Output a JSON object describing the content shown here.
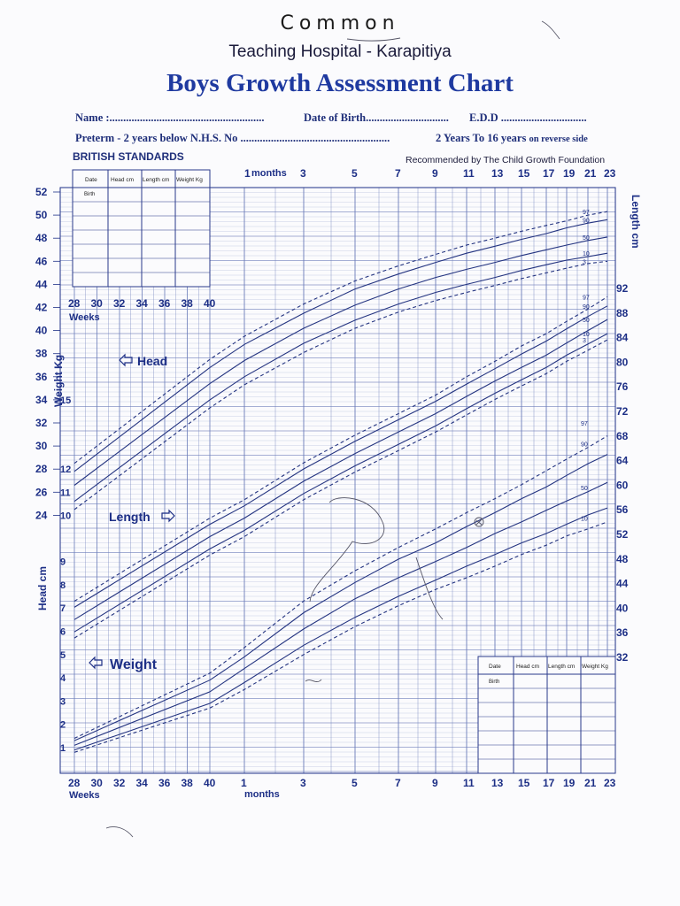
{
  "header": {
    "handwritten": "Common",
    "hospital": "Teaching Hospital - Karapitiya",
    "title": "Boys Growth Assessment Chart"
  },
  "form": {
    "name": "Name :........................................................",
    "dob": "Date of Birth..............................",
    "edd": "E.D.D ...............................",
    "preterm": "Preterm - 2 years below N.H.S.  No ......................................................",
    "reverse": "2 Years To 16 years",
    "reverse_small": "on reverse side"
  },
  "standards": "BRITISH STANDARDS",
  "recommended": "Recommended by The Child Growth Foundation",
  "labels": {
    "head": "Head",
    "length": "Length",
    "weight": "Weight",
    "weight_axis": "Weight Kg",
    "head_axis": "Head cm",
    "length_axis": "Length cm",
    "weeks": "Weeks",
    "months": "months",
    "months_top": "months"
  },
  "table_headers": [
    "Date",
    "Head cm",
    "Length cm",
    "Weight Kg"
  ],
  "table_first_row": "Birth",
  "colors": {
    "ink": "#1d2f86",
    "grid": "#6a7bb8",
    "pencil": "#555566"
  },
  "chart_data": [
    {
      "type": "line",
      "name": "head",
      "title": "",
      "x_weeks_ticks": [
        "28",
        "30",
        "32",
        "34",
        "36",
        "38",
        "40"
      ],
      "x_months_ticks": [
        "1",
        "3",
        "5",
        "7",
        "9",
        "11",
        "13",
        "15",
        "17",
        "19",
        "21",
        "23"
      ],
      "y_left_head_ticks": [
        "24",
        "26",
        "28",
        "30",
        "32",
        "34",
        "36",
        "38",
        "40",
        "42",
        "44",
        "46",
        "48",
        "50",
        "52"
      ],
      "centiles": [
        "97",
        "90",
        "50",
        "10",
        "3"
      ],
      "series": [
        {
          "name": "97",
          "x": [
            28,
            40,
            1,
            3,
            5,
            7,
            9,
            11,
            13,
            15,
            17,
            19,
            21,
            23
          ],
          "values": [
            28.5,
            37.5,
            39.5,
            42.3,
            44.3,
            45.6,
            46.6,
            47.4,
            48.0,
            48.6,
            49.1,
            49.5,
            50.0,
            50.3
          ]
        },
        {
          "name": "90",
          "x": [
            28,
            40,
            1,
            3,
            5,
            7,
            9,
            11,
            13,
            15,
            17,
            19,
            21,
            23
          ],
          "values": [
            27.8,
            36.8,
            38.8,
            41.5,
            43.6,
            44.9,
            45.9,
            46.7,
            47.3,
            47.9,
            48.4,
            48.9,
            49.3,
            49.6
          ]
        },
        {
          "name": "50",
          "x": [
            28,
            40,
            1,
            3,
            5,
            7,
            9,
            11,
            13,
            15,
            17,
            19,
            21,
            23
          ],
          "values": [
            26.6,
            35.4,
            37.4,
            40.2,
            42.2,
            43.6,
            44.6,
            45.3,
            45.9,
            46.5,
            47.0,
            47.4,
            47.8,
            48.1
          ]
        },
        {
          "name": "10",
          "x": [
            28,
            40,
            1,
            3,
            5,
            7,
            9,
            11,
            13,
            15,
            17,
            19,
            21,
            23
          ],
          "values": [
            25.2,
            34.0,
            36.0,
            38.9,
            40.9,
            42.3,
            43.3,
            44.0,
            44.6,
            45.2,
            45.7,
            46.1,
            46.4,
            46.7
          ]
        },
        {
          "name": "3",
          "x": [
            28,
            40,
            1,
            3,
            5,
            7,
            9,
            11,
            13,
            15,
            17,
            19,
            21,
            23
          ],
          "values": [
            24.5,
            33.3,
            35.3,
            38.1,
            40.2,
            41.6,
            42.6,
            43.3,
            43.9,
            44.5,
            45.0,
            45.4,
            45.8,
            46.0
          ]
        }
      ]
    },
    {
      "type": "line",
      "name": "length",
      "y_right_ticks": [
        "32",
        "36",
        "40",
        "44",
        "48",
        "52",
        "56",
        "60",
        "64",
        "68",
        "72",
        "76",
        "80",
        "84",
        "88",
        "92"
      ],
      "series": [
        {
          "name": "97",
          "x": [
            28,
            40,
            1,
            3,
            5,
            7,
            9,
            11,
            13,
            15,
            17,
            19,
            21,
            23
          ],
          "values": [
            41,
            54.5,
            57.5,
            63.5,
            68,
            71.5,
            74.5,
            77.5,
            80,
            82.5,
            84.5,
            86.5,
            88.5,
            90.5
          ]
        },
        {
          "name": "90",
          "x": [
            28,
            40,
            1,
            3,
            5,
            7,
            9,
            11,
            13,
            15,
            17,
            19,
            21,
            23
          ],
          "values": [
            40,
            53.5,
            56.5,
            62.5,
            67,
            70.5,
            73.5,
            76.3,
            78.8,
            81.2,
            83.3,
            85.3,
            87.3,
            89
          ]
        },
        {
          "name": "50",
          "x": [
            28,
            40,
            1,
            3,
            5,
            7,
            9,
            11,
            13,
            15,
            17,
            19,
            21,
            23
          ],
          "values": [
            38,
            51.5,
            54.5,
            60.5,
            65,
            68.5,
            71.5,
            74.3,
            76.8,
            79,
            81,
            83,
            85,
            86.8
          ]
        },
        {
          "name": "10",
          "x": [
            28,
            40,
            1,
            3,
            5,
            7,
            9,
            11,
            13,
            15,
            17,
            19,
            21,
            23
          ],
          "values": [
            36,
            49.5,
            52.5,
            58.5,
            63,
            66.5,
            69.5,
            72.3,
            74.8,
            77,
            79,
            81,
            82.8,
            84.5
          ]
        },
        {
          "name": "3",
          "x": [
            28,
            40,
            1,
            3,
            5,
            7,
            9,
            11,
            13,
            15,
            17,
            19,
            21,
            23
          ],
          "values": [
            35,
            48.5,
            51.5,
            57.5,
            62,
            65.5,
            68.5,
            71.3,
            73.8,
            76,
            78,
            80,
            81.8,
            83.5
          ]
        }
      ]
    },
    {
      "type": "line",
      "name": "weight",
      "y_left_weight_ticks": [
        "1",
        "2",
        "3",
        "4",
        "5",
        "6",
        "7",
        "8",
        "9",
        "10",
        "11",
        "12",
        "15"
      ],
      "series": [
        {
          "name": "97",
          "x": [
            28,
            40,
            1,
            3,
            5,
            7,
            9,
            11,
            13,
            15,
            17,
            19,
            21,
            23
          ],
          "values": [
            1.4,
            4.2,
            5.3,
            7.3,
            8.6,
            9.6,
            10.4,
            11.1,
            11.7,
            12.3,
            12.9,
            13.4,
            13.9,
            14.4
          ]
        },
        {
          "name": "90",
          "x": [
            28,
            40,
            1,
            3,
            5,
            7,
            9,
            11,
            13,
            15,
            17,
            19,
            21,
            23
          ],
          "values": [
            1.3,
            3.9,
            4.9,
            6.8,
            8.1,
            9.1,
            9.8,
            10.5,
            11.1,
            11.7,
            12.2,
            12.7,
            13.2,
            13.6
          ]
        },
        {
          "name": "50",
          "x": [
            28,
            40,
            1,
            3,
            5,
            7,
            9,
            11,
            13,
            15,
            17,
            19,
            21,
            23
          ],
          "values": [
            1.1,
            3.4,
            4.4,
            6.1,
            7.4,
            8.3,
            9.0,
            9.6,
            10.2,
            10.7,
            11.2,
            11.6,
            12.0,
            12.4
          ]
        },
        {
          "name": "10",
          "x": [
            28,
            40,
            1,
            3,
            5,
            7,
            9,
            11,
            13,
            15,
            17,
            19,
            21,
            23
          ],
          "values": [
            0.9,
            2.9,
            3.8,
            5.4,
            6.6,
            7.5,
            8.2,
            8.8,
            9.3,
            9.8,
            10.2,
            10.6,
            11.0,
            11.3
          ]
        },
        {
          "name": "3",
          "x": [
            28,
            40,
            1,
            3,
            5,
            7,
            9,
            11,
            13,
            15,
            17,
            19,
            21,
            23
          ],
          "values": [
            0.8,
            2.7,
            3.5,
            5.0,
            6.2,
            7.1,
            7.8,
            8.3,
            8.8,
            9.3,
            9.7,
            10.1,
            10.4,
            10.7
          ]
        }
      ]
    }
  ]
}
